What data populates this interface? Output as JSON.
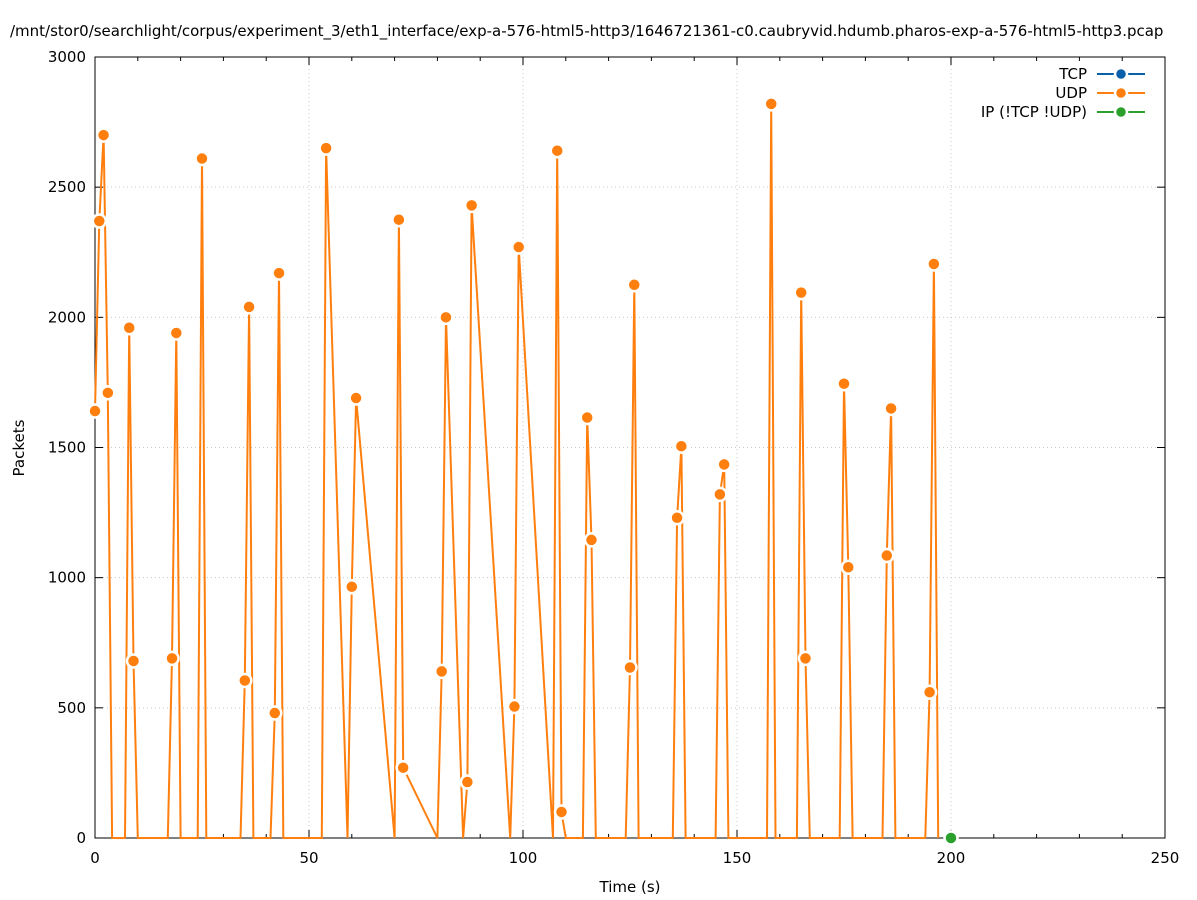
{
  "chart_data": {
    "type": "line",
    "title": "/mnt/stor0/searchlight/corpus/experiment_3/eth1_interface/exp-a-576-html5-http3/1646721361-c0.caubryvid.hdumb.pharos-exp-a-576-html5-http3.pcap",
    "xlabel": "Time (s)",
    "ylabel": "Packets",
    "xlim": [
      0,
      250
    ],
    "ylim": [
      0,
      3000
    ],
    "xticks": [
      "0",
      "50",
      "100",
      "150",
      "200",
      "250"
    ],
    "yticks": [
      "0",
      "500",
      "1000",
      "1500",
      "2000",
      "2500",
      "3000"
    ],
    "xtick_values": [
      0,
      50,
      100,
      150,
      200,
      250
    ],
    "ytick_values": [
      0,
      500,
      1000,
      1500,
      2000,
      2500,
      3000
    ],
    "grid": true,
    "legend_position": "top-right",
    "series": [
      {
        "name": "TCP",
        "color": "#0a5fab",
        "x": [],
        "y": []
      },
      {
        "name": "UDP",
        "color": "#ff7f0e",
        "x": [
          0,
          1,
          2,
          3,
          4,
          7,
          8,
          9,
          10,
          17,
          18,
          19,
          20,
          24,
          25,
          26,
          34,
          35,
          36,
          37,
          41,
          42,
          43,
          44,
          53,
          54,
          59,
          60,
          61,
          70,
          71,
          72,
          80,
          81,
          82,
          86,
          87,
          88,
          97,
          98,
          99,
          107,
          108,
          109,
          110,
          114,
          115,
          116,
          117,
          124,
          125,
          126,
          127,
          135,
          136,
          137,
          138,
          145,
          146,
          147,
          148,
          157,
          158,
          159,
          164,
          165,
          166,
          167,
          174,
          175,
          176,
          177,
          184,
          185,
          186,
          187,
          194,
          195,
          196,
          197
        ],
        "y": [
          1640,
          2370,
          2700,
          1710,
          0,
          0,
          1960,
          680,
          0,
          0,
          690,
          1940,
          0,
          0,
          2610,
          0,
          0,
          605,
          2040,
          0,
          0,
          480,
          2170,
          0,
          0,
          2650,
          0,
          965,
          1690,
          0,
          2375,
          270,
          0,
          640,
          2000,
          0,
          215,
          2430,
          0,
          505,
          2270,
          0,
          2640,
          100,
          0,
          0,
          1615,
          1145,
          0,
          0,
          655,
          2125,
          0,
          0,
          1230,
          1505,
          0,
          0,
          1320,
          1435,
          0,
          0,
          2820,
          0,
          0,
          2095,
          690,
          0,
          0,
          1745,
          1040,
          0,
          0,
          1085,
          1650,
          0,
          0,
          560,
          2205,
          0
        ],
        "markers": [
          [
            0,
            1640
          ],
          [
            1,
            2370
          ],
          [
            2,
            2700
          ],
          [
            3,
            1710
          ],
          [
            8,
            1960
          ],
          [
            9,
            680
          ],
          [
            18,
            690
          ],
          [
            19,
            1940
          ],
          [
            25,
            2610
          ],
          [
            35,
            605
          ],
          [
            36,
            2040
          ],
          [
            42,
            480
          ],
          [
            43,
            2170
          ],
          [
            54,
            2650
          ],
          [
            60,
            965
          ],
          [
            61,
            1690
          ],
          [
            71,
            2375
          ],
          [
            72,
            270
          ],
          [
            81,
            640
          ],
          [
            82,
            2000
          ],
          [
            87,
            215
          ],
          [
            88,
            2430
          ],
          [
            98,
            505
          ],
          [
            99,
            2270
          ],
          [
            108,
            2640
          ],
          [
            109,
            100
          ],
          [
            115,
            1615
          ],
          [
            116,
            1145
          ],
          [
            125,
            655
          ],
          [
            126,
            2125
          ],
          [
            136,
            1230
          ],
          [
            137,
            1505
          ],
          [
            146,
            1320
          ],
          [
            147,
            1435
          ],
          [
            158,
            2820
          ],
          [
            165,
            2095
          ],
          [
            166,
            690
          ],
          [
            175,
            1745
          ],
          [
            176,
            1040
          ],
          [
            185,
            1085
          ],
          [
            186,
            1650
          ],
          [
            195,
            560
          ],
          [
            196,
            2205
          ]
        ]
      },
      {
        "name": "IP (!TCP  !UDP)",
        "color": "#2ca02c",
        "x": [
          200
        ],
        "y": [
          0
        ],
        "markers": [
          [
            200,
            0
          ]
        ]
      }
    ]
  }
}
